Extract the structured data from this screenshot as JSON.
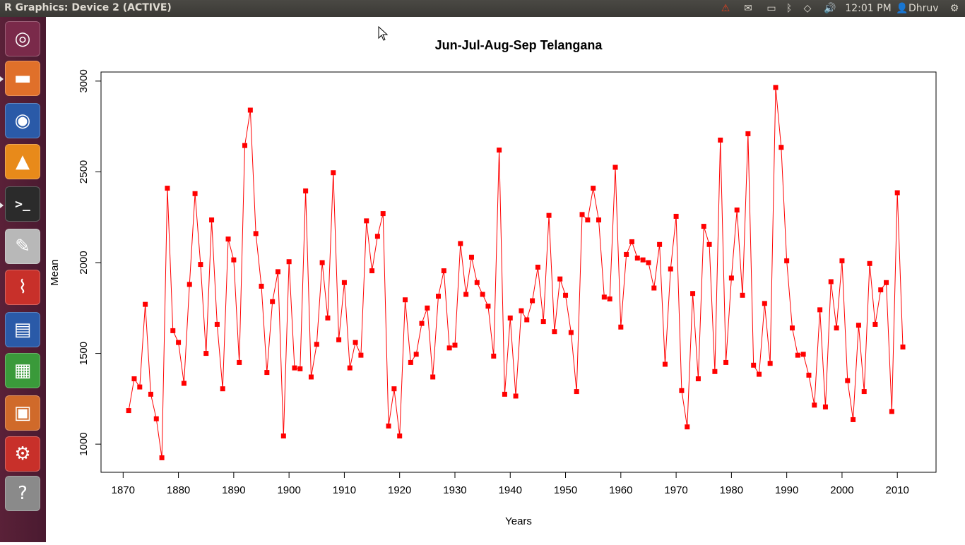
{
  "window": {
    "title": "R Graphics: Device 2 (ACTIVE)"
  },
  "indicators": {
    "time": "12:01 PM",
    "user": "Dhruv"
  },
  "launcher": {
    "items": [
      {
        "name": "ubuntu-dash",
        "glyph": "◎",
        "color": "#7a2a4a"
      },
      {
        "name": "files",
        "glyph": "▬",
        "color": "#e0702a"
      },
      {
        "name": "firefox",
        "glyph": "◉",
        "color": "#2a5aa8"
      },
      {
        "name": "vlc",
        "glyph": "▲",
        "color": "#e88a1a"
      },
      {
        "name": "terminal",
        "glyph": ">_",
        "color": "#2b2b2b"
      },
      {
        "name": "text-editor",
        "glyph": "✎",
        "color": "#b8b8b8"
      },
      {
        "name": "document-viewer",
        "glyph": "⌇",
        "color": "#c8302a"
      },
      {
        "name": "libreoffice-writer",
        "glyph": "▤",
        "color": "#2a5aa8"
      },
      {
        "name": "libreoffice-calc",
        "glyph": "▦",
        "color": "#3a9a3a"
      },
      {
        "name": "libreoffice-impress",
        "glyph": "▣",
        "color": "#d06a2a"
      },
      {
        "name": "system-settings",
        "glyph": "⚙",
        "color": "#c8302a"
      },
      {
        "name": "help",
        "glyph": "?",
        "color": "#8a8a8a"
      }
    ]
  },
  "chart_data": {
    "type": "line",
    "title": "Jun-Jul-Aug-Sep Telangana",
    "xlabel": "Years",
    "ylabel": "Mean",
    "xlim": [
      1866,
      2017
    ],
    "ylim": [
      845,
      3050
    ],
    "xticks": [
      1870,
      1880,
      1890,
      1900,
      1910,
      1920,
      1930,
      1940,
      1950,
      1960,
      1970,
      1980,
      1990,
      2000,
      2010
    ],
    "yticks": [
      1000,
      1500,
      2000,
      2500,
      3000
    ],
    "grid": false,
    "legend": "none",
    "color": "#ff0000",
    "x_start": 1871,
    "values": [
      1185,
      1360,
      1315,
      1770,
      1275,
      1140,
      925,
      2410,
      1625,
      1560,
      1335,
      1880,
      2380,
      1990,
      1500,
      2235,
      1660,
      1305,
      2130,
      2015,
      1450,
      2645,
      2840,
      2160,
      1870,
      1395,
      1785,
      1950,
      1045,
      2005,
      1420,
      1415,
      2395,
      1370,
      1550,
      2000,
      1695,
      2495,
      1575,
      1890,
      1420,
      1560,
      1490,
      2230,
      1955,
      2145,
      2270,
      1100,
      1305,
      1045,
      1795,
      1450,
      1495,
      1665,
      1750,
      1370,
      1815,
      1955,
      1530,
      1545,
      2105,
      1825,
      2030,
      1890,
      1825,
      1760,
      1485,
      2620,
      1275,
      1695,
      1265,
      1735,
      1685,
      1790,
      1975,
      1675,
      2260,
      1620,
      1910,
      1820,
      1615,
      1290,
      2265,
      2235,
      2410,
      2235,
      1810,
      1800,
      2525,
      1645,
      2045,
      2115,
      2025,
      2015,
      2000,
      1860,
      2100,
      1440,
      1965,
      2255,
      1295,
      1095,
      1830,
      1360,
      2200,
      2100,
      1400,
      2675,
      1450,
      1915,
      2290,
      1820,
      2710,
      1435,
      1385,
      1775,
      1445,
      2965,
      2635,
      2010,
      1640,
      1490,
      1495,
      1380,
      1215,
      1740,
      1205,
      1895,
      1640,
      2010,
      1350,
      1135,
      1655,
      1290,
      1995,
      1660,
      1850,
      1890,
      1180,
      2385,
      1535
    ]
  }
}
